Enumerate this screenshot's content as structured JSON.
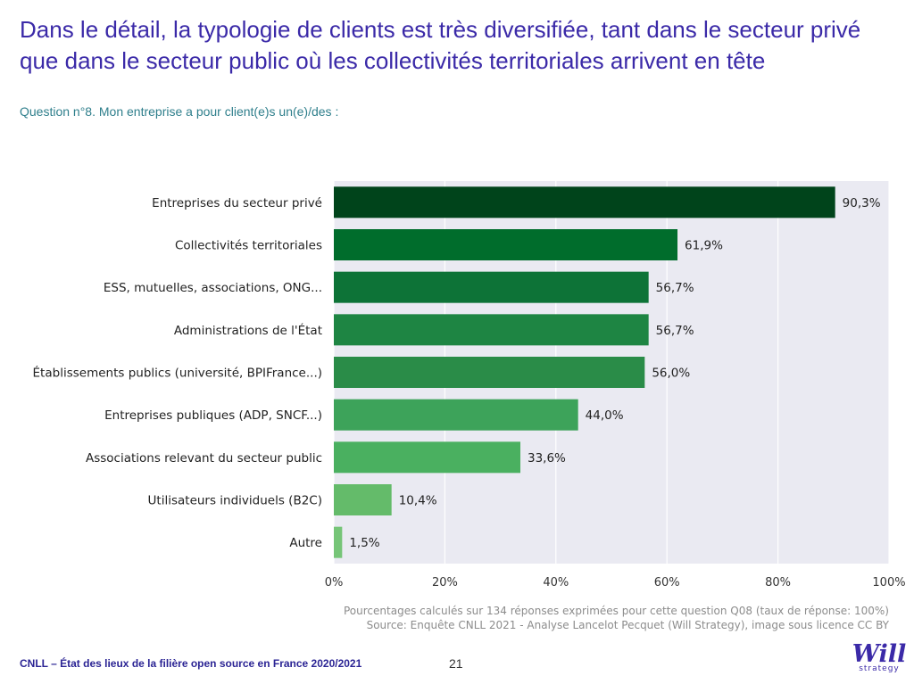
{
  "header": {
    "title_line1": "Dans le détail, la typologie de clients est très diversifiée, tant dans le secteur privé",
    "title_line2": "que dans le secteur public où les collectivités territoriales arrivent en tête",
    "question": "Question n°8. Mon entreprise a pour client(e)s un(e)/des :"
  },
  "chart_data": {
    "type": "bar",
    "orientation": "horizontal",
    "categories": [
      "Entreprises du secteur privé",
      "Collectivités territoriales",
      "ESS, mutuelles, associations, ONG...",
      "Administrations de l'État",
      "Établissements publics (université, BPIFrance...)",
      "Entreprises publiques (ADP, SNCF...)",
      "Associations relevant du secteur public",
      "Utilisateurs individuels (B2C)",
      "Autre"
    ],
    "values": [
      90.3,
      61.9,
      56.7,
      56.7,
      56.0,
      44.0,
      33.6,
      10.4,
      1.5
    ],
    "value_labels": [
      "90,3%",
      "61,9%",
      "56,7%",
      "56,7%",
      "56,0%",
      "44,0%",
      "33,6%",
      "10,4%",
      "1,5%"
    ],
    "bar_colors": [
      "#00441b",
      "#006d2c",
      "#0d7337",
      "#1e8543",
      "#2a8c48",
      "#3da35a",
      "#4ab060",
      "#64bb6a",
      "#76c578"
    ],
    "xlim": [
      0,
      100
    ],
    "xticks": [
      0,
      20,
      40,
      60,
      80,
      100
    ],
    "xtick_labels": [
      "0%",
      "20%",
      "40%",
      "60%",
      "80%",
      "100%"
    ],
    "grid": true,
    "plot_background": "#eaeaf2"
  },
  "note": {
    "line1": "Pourcentages calculés sur 134 réponses exprimées pour cette question Q08 (taux de réponse: 100%)",
    "line2": "Source: Enquête CNLL 2021 - Analyse Lancelot Pecquet (Will Strategy), image sous licence CC BY"
  },
  "footer": {
    "left": "CNLL – État des lieux de la filière open source en France 2020/2021",
    "page": "21",
    "logo_word": "Will",
    "logo_sub": "strategy"
  }
}
